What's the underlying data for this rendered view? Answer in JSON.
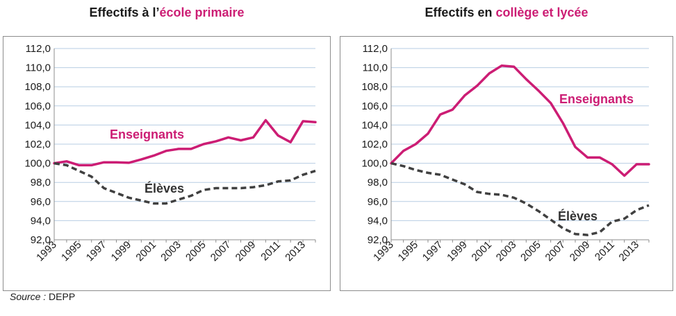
{
  "source": {
    "label": "Source :",
    "value": "DEPP"
  },
  "colors": {
    "enseignants": "#cc1d74",
    "eleves": "#404040",
    "grid": "#b7cde3",
    "axis": "#8c8c8c"
  },
  "chart_data": [
    {
      "type": "line",
      "title_prefix": "Effectifs à l’",
      "title_accent": "école primaire",
      "ylim": [
        92,
        112
      ],
      "yticks": [
        "112,0",
        "110,0",
        "108,0",
        "106,0",
        "104,0",
        "102,0",
        "100,0",
        "98,0",
        "96,0",
        "94,0",
        "92,0"
      ],
      "ytick_values": [
        112,
        110,
        108,
        106,
        104,
        102,
        100,
        98,
        96,
        94,
        92
      ],
      "xticks": [
        "1993",
        "1995",
        "1997",
        "1999",
        "2001",
        "2003",
        "2005",
        "2007",
        "2009",
        "2011",
        "2013"
      ],
      "x": [
        1993,
        1994,
        1995,
        1996,
        1997,
        1998,
        1999,
        2000,
        2001,
        2002,
        2003,
        2004,
        2005,
        2006,
        2007,
        2008,
        2009,
        2010,
        2011,
        2012,
        2013,
        2014
      ],
      "grid": true,
      "series": [
        {
          "name": "Enseignants",
          "style": "solid",
          "values": [
            100.0,
            100.2,
            99.8,
            99.8,
            100.1,
            100.1,
            100.05,
            100.4,
            100.8,
            101.3,
            101.5,
            101.5,
            102.0,
            102.3,
            102.7,
            102.4,
            102.7,
            104.5,
            102.9,
            102.2,
            104.4,
            104.3
          ]
        },
        {
          "name": "Élèves",
          "style": "dashed",
          "values": [
            100.0,
            99.8,
            99.2,
            98.6,
            97.4,
            96.9,
            96.4,
            96.1,
            95.8,
            95.8,
            96.2,
            96.6,
            97.2,
            97.4,
            97.4,
            97.4,
            97.5,
            97.7,
            98.1,
            98.2,
            98.8,
            99.2
          ]
        }
      ]
    },
    {
      "type": "line",
      "title_prefix": "Effectifs en ",
      "title_accent": "collège et lycée",
      "ylim": [
        92,
        112
      ],
      "yticks": [
        "112,0",
        "110,0",
        "108,0",
        "106,0",
        "104,0",
        "102,0",
        "100,0",
        "98,0",
        "96,0",
        "94,0",
        "92,0"
      ],
      "ytick_values": [
        112,
        110,
        108,
        106,
        104,
        102,
        100,
        98,
        96,
        94,
        92
      ],
      "xticks": [
        "1993",
        "1995",
        "1997",
        "1999",
        "2001",
        "2003",
        "2005",
        "2007",
        "2009",
        "2011",
        "2013"
      ],
      "x": [
        1993,
        1994,
        1995,
        1996,
        1997,
        1998,
        1999,
        2000,
        2001,
        2002,
        2003,
        2004,
        2005,
        2006,
        2007,
        2008,
        2009,
        2010,
        2011,
        2012,
        2013,
        2014
      ],
      "grid": true,
      "series": [
        {
          "name": "Enseignants",
          "style": "solid",
          "values": [
            100.0,
            101.3,
            102.0,
            103.1,
            105.1,
            105.6,
            107.1,
            108.1,
            109.4,
            110.2,
            110.1,
            108.8,
            107.6,
            106.3,
            104.2,
            101.7,
            100.6,
            100.6,
            99.9,
            98.7,
            99.9,
            99.9
          ]
        },
        {
          "name": "Élèves",
          "style": "dashed",
          "values": [
            100.0,
            99.7,
            99.3,
            99.0,
            98.8,
            98.3,
            97.8,
            97.0,
            96.8,
            96.7,
            96.4,
            95.8,
            95.0,
            94.1,
            93.2,
            92.6,
            92.5,
            92.8,
            93.9,
            94.2,
            95.1,
            95.6
          ]
        }
      ]
    }
  ]
}
